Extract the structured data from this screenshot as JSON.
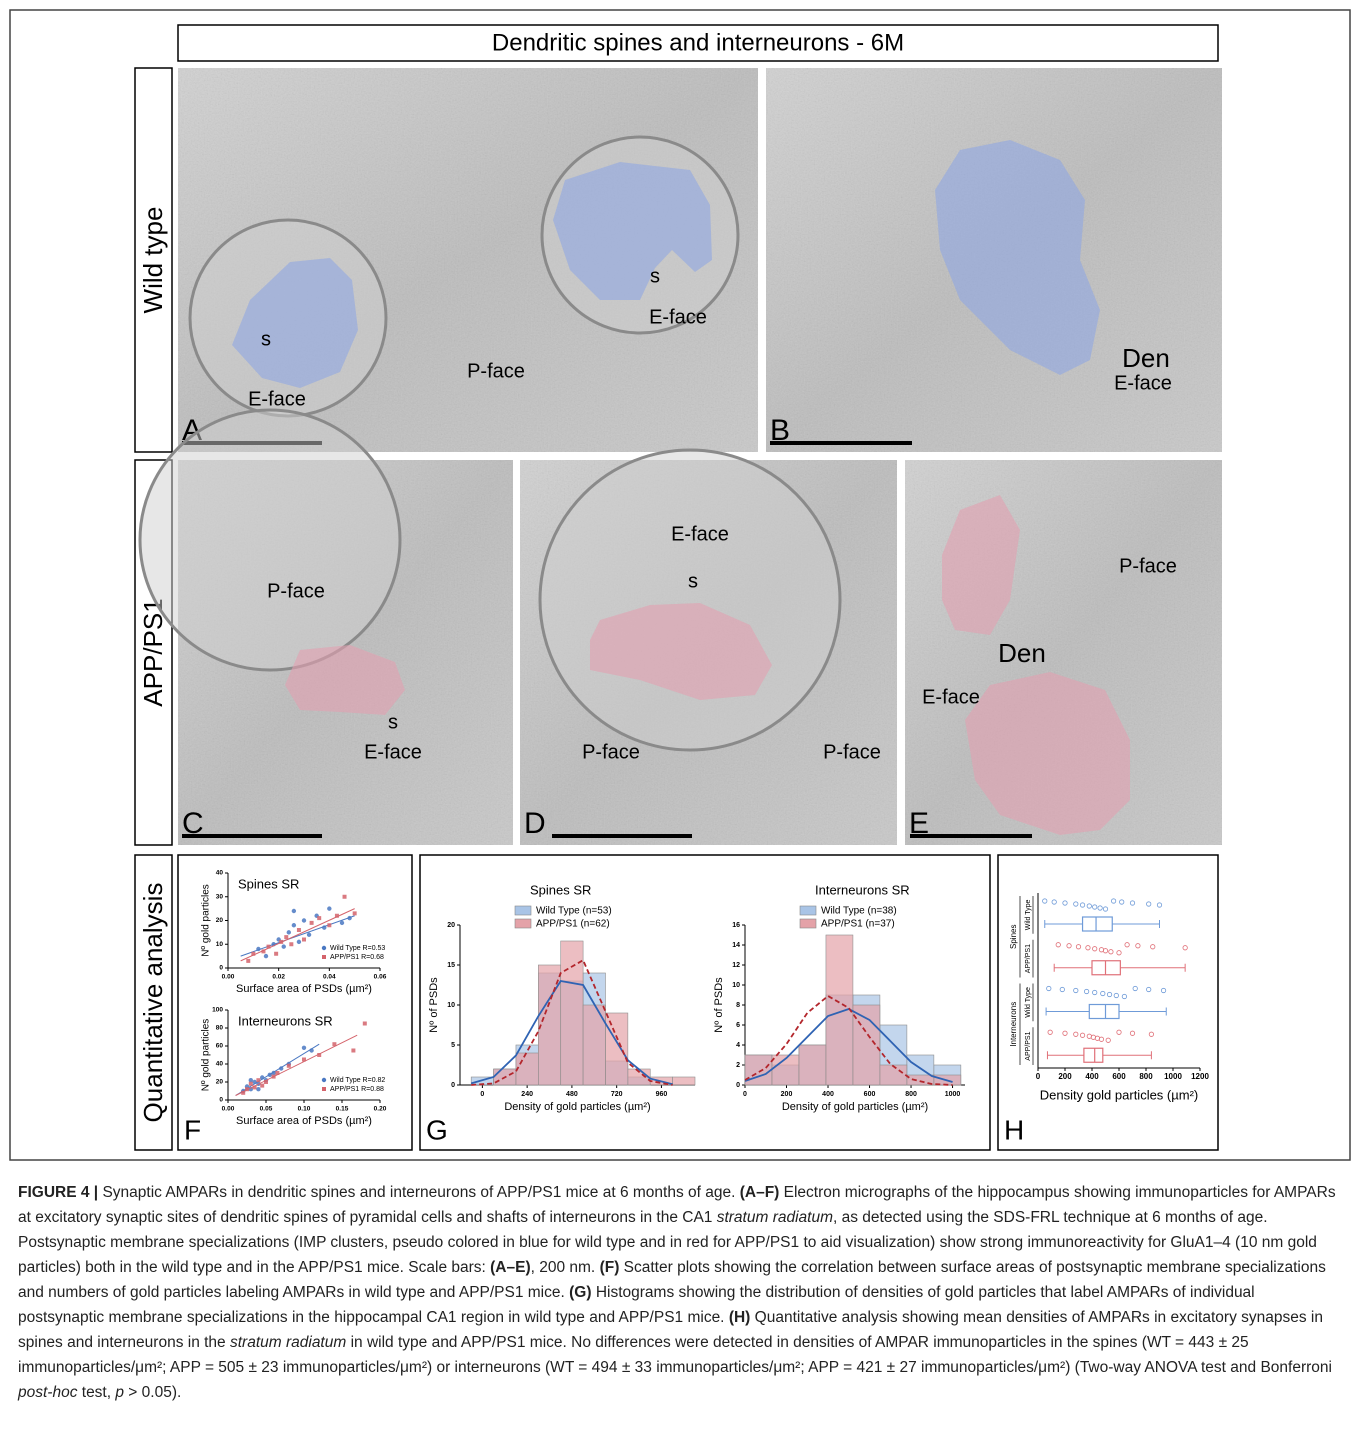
{
  "figure": {
    "title": "Dendritic spines and interneurons - 6M",
    "rows": [
      "Wild type",
      "APP/PS1",
      "Quantitative analysis"
    ],
    "panels": [
      {
        "letter": "A",
        "labels": [
          "s",
          "E-face",
          "s",
          "E-face",
          "P-face"
        ]
      },
      {
        "letter": "B",
        "labels": [
          "Den",
          "E-face"
        ]
      },
      {
        "letter": "C",
        "labels": [
          "P-face",
          "s",
          "E-face"
        ]
      },
      {
        "letter": "D",
        "labels": [
          "E-face",
          "s",
          "P-face",
          "P-face"
        ]
      },
      {
        "letter": "E",
        "labels": [
          "P-face",
          "Den",
          "E-face"
        ]
      },
      {
        "letter": "F"
      },
      {
        "letter": "G"
      },
      {
        "letter": "H"
      }
    ]
  },
  "chart_data": [
    {
      "type": "scatter",
      "title": "Spines SR",
      "x_label": "Surface area of PSDs (µm²)",
      "y_label": "Nº gold particles",
      "xlim": [
        0,
        0.06
      ],
      "xticks": [
        {
          "value": 0,
          "label": "0.00"
        },
        {
          "value": 0.02,
          "label": "0.02"
        },
        {
          "value": 0.04,
          "label": "0.04"
        },
        {
          "value": 0.06,
          "label": "0.06"
        }
      ],
      "ylim": [
        0,
        40
      ],
      "yticks": [
        0,
        10,
        20,
        30,
        40
      ],
      "series": [
        {
          "name": "Wild Type R=0.53",
          "color": "#4a78c2",
          "marker": "circle",
          "x": [
            0.012,
            0.015,
            0.018,
            0.02,
            0.022,
            0.024,
            0.026,
            0.028,
            0.03,
            0.032,
            0.035,
            0.038,
            0.04,
            0.045,
            0.048,
            0.026
          ],
          "y": [
            8,
            5,
            10,
            12,
            9,
            15,
            18,
            11,
            20,
            14,
            22,
            17,
            25,
            19,
            21,
            24
          ],
          "trend_x": [
            0.005,
            0.05
          ],
          "trend_y": [
            5,
            22
          ]
        },
        {
          "name": "APP/PS1 R=0.68",
          "color": "#d4636b",
          "marker": "square",
          "x": [
            0.008,
            0.01,
            0.014,
            0.016,
            0.019,
            0.021,
            0.023,
            0.025,
            0.028,
            0.03,
            0.033,
            0.036,
            0.04,
            0.046,
            0.05,
            0.043
          ],
          "y": [
            3,
            6,
            7,
            9,
            6,
            11,
            13,
            10,
            16,
            12,
            19,
            21,
            18,
            30,
            23,
            22
          ],
          "trend_x": [
            0.005,
            0.05
          ],
          "trend_y": [
            3,
            25
          ]
        }
      ]
    },
    {
      "type": "scatter",
      "title": "Interneurons SR",
      "x_label": "Surface area of PSDs (µm²)",
      "y_label": "Nº gold particles",
      "xlim": [
        0,
        0.2
      ],
      "xticks": [
        {
          "value": 0,
          "label": "0.00"
        },
        {
          "value": 0.05,
          "label": "0.05"
        },
        {
          "value": 0.1,
          "label": "0.10"
        },
        {
          "value": 0.15,
          "label": "0.15"
        },
        {
          "value": 0.2,
          "label": "0.20"
        }
      ],
      "ylim": [
        0,
        100
      ],
      "yticks": [
        0,
        20,
        40,
        60,
        80,
        100
      ],
      "series": [
        {
          "name": "Wild Type R=0.82",
          "color": "#4a78c2",
          "marker": "circle",
          "x": [
            0.02,
            0.025,
            0.03,
            0.035,
            0.04,
            0.045,
            0.05,
            0.055,
            0.06,
            0.07,
            0.08,
            0.1,
            0.11,
            0.03,
            0.04
          ],
          "y": [
            10,
            15,
            12,
            20,
            18,
            25,
            22,
            28,
            30,
            35,
            40,
            58,
            55,
            22,
            12
          ],
          "trend_x": [
            0.01,
            0.12
          ],
          "trend_y": [
            5,
            62
          ]
        },
        {
          "name": "APP/PS1 R=0.88",
          "color": "#d4636b",
          "marker": "square",
          "x": [
            0.02,
            0.025,
            0.03,
            0.035,
            0.04,
            0.05,
            0.06,
            0.065,
            0.08,
            0.1,
            0.12,
            0.14,
            0.165,
            0.18,
            0.045
          ],
          "y": [
            8,
            12,
            18,
            14,
            22,
            20,
            26,
            30,
            38,
            45,
            50,
            62,
            55,
            85,
            16
          ],
          "trend_x": [
            0.01,
            0.17
          ],
          "trend_y": [
            5,
            72
          ]
        }
      ]
    },
    {
      "type": "histogram",
      "title": "Spines SR",
      "x_label": "Density of gold particles (µm²)",
      "y_label": "Nº of PSDs",
      "xlim": [
        -120,
        1140
      ],
      "xticks": [
        0,
        240,
        480,
        720,
        960
      ],
      "ylim": [
        0,
        20
      ],
      "yticks": [
        0,
        5,
        10,
        15,
        20
      ],
      "bins": [
        -60,
        60,
        180,
        300,
        420,
        540,
        660,
        780,
        900,
        1020,
        1140
      ],
      "series": [
        {
          "name": "Wild Type (n=53)",
          "color": "#a9c4e6",
          "line_color": "#2f63b3",
          "dash": false,
          "values": [
            1,
            2,
            5,
            14,
            13,
            14,
            3,
            1,
            0,
            0
          ],
          "fit_x": [
            -60,
            60,
            180,
            300,
            420,
            540,
            660,
            780,
            900,
            1020
          ],
          "fit_y": [
            0.2,
            1,
            3.7,
            8.6,
            13,
            12.5,
            7.7,
            3.1,
            0.8,
            0.1
          ]
        },
        {
          "name": "APP/PS1 (n=62)",
          "color": "#e4a2a8",
          "line_color": "#b3262c",
          "dash": true,
          "values": [
            0,
            2,
            4,
            15,
            18,
            10,
            9,
            2,
            1,
            1
          ],
          "fit_x": [
            -60,
            60,
            180,
            300,
            420,
            540,
            660,
            780,
            900,
            1020
          ],
          "fit_y": [
            0,
            0.2,
            1.7,
            6.7,
            14,
            15.6,
            9.2,
            2.8,
            0.5,
            0
          ]
        }
      ]
    },
    {
      "type": "histogram",
      "title": "Interneurons SR",
      "x_label": "Density of gold particles (µm²)",
      "y_label": "Nº of PSDs",
      "xlim": [
        0,
        1060
      ],
      "xticks": [
        0,
        200,
        400,
        600,
        800,
        1000
      ],
      "ylim": [
        0,
        16
      ],
      "yticks": [
        0,
        2,
        4,
        6,
        8,
        10,
        12,
        14,
        16
      ],
      "bins": [
        0,
        130,
        260,
        390,
        520,
        650,
        780,
        910,
        1040
      ],
      "series": [
        {
          "name": "Wild Type (n=38)",
          "color": "#a9c4e6",
          "line_color": "#2f63b3",
          "dash": false,
          "values": [
            3,
            2,
            4,
            9,
            9,
            6,
            3,
            2
          ],
          "fit_x": [
            0,
            100,
            200,
            300,
            400,
            500,
            600,
            700,
            800,
            900,
            1000
          ],
          "fit_y": [
            0.4,
            1.1,
            2.7,
            4.8,
            6.9,
            7.6,
            6.5,
            4.4,
            2.3,
            0.9,
            0.3
          ]
        },
        {
          "name": "APP/PS1 (n=37)",
          "color": "#e4a2a8",
          "line_color": "#b3262c",
          "dash": true,
          "values": [
            3,
            3,
            4,
            15,
            8,
            2,
            1,
            1
          ],
          "fit_x": [
            0,
            100,
            200,
            300,
            400,
            500,
            600,
            700,
            800,
            900,
            1000
          ],
          "fit_y": [
            0.5,
            1.7,
            4.1,
            7.2,
            8.9,
            7.7,
            4.8,
            2.1,
            0.6,
            0.1,
            0
          ]
        }
      ]
    },
    {
      "type": "box",
      "x_label": "Density gold particles (µm²)",
      "xlim": [
        0,
        1200
      ],
      "xticks": [
        0,
        200,
        400,
        600,
        800,
        1000,
        1200
      ],
      "groups": [
        "Spines",
        "Interneurons"
      ],
      "categories": [
        "Wild Type",
        "APP/PS1",
        "Wild Type",
        "APP/PS1"
      ],
      "rows": [
        {
          "color": "#6f9bd8",
          "min": 50,
          "q1": 330,
          "median": 430,
          "q3": 550,
          "max": 900,
          "points": [
            50,
            120,
            200,
            280,
            330,
            380,
            420,
            460,
            500,
            560,
            620,
            700,
            820,
            900
          ]
        },
        {
          "color": "#e07078",
          "min": 120,
          "q1": 400,
          "median": 500,
          "q3": 610,
          "max": 1090,
          "points": [
            150,
            230,
            300,
            370,
            420,
            470,
            500,
            540,
            600,
            660,
            740,
            850,
            1090
          ]
        },
        {
          "color": "#6f9bd8",
          "min": 60,
          "q1": 380,
          "median": 500,
          "q3": 600,
          "max": 950,
          "points": [
            80,
            180,
            280,
            360,
            420,
            480,
            530,
            580,
            640,
            720,
            820,
            930
          ]
        },
        {
          "color": "#e07078",
          "min": 70,
          "q1": 340,
          "median": 420,
          "q3": 480,
          "max": 840,
          "points": [
            90,
            200,
            280,
            330,
            380,
            410,
            440,
            470,
            520,
            600,
            700,
            840
          ]
        }
      ]
    }
  ],
  "caption": [
    {
      "text": "FIGURE 4 | ",
      "style": "bold"
    },
    {
      "text": "Synaptic AMPARs in dendritic spines and interneurons of APP/PS1 mice at 6 months of age. "
    },
    {
      "text": "(A–F)",
      "style": "bold"
    },
    {
      "text": " Electron micrographs of the hippocampus showing immunoparticles for AMPARs at excitatory synaptic sites of dendritic spines of pyramidal cells and shafts of interneurons in the CA1 "
    },
    {
      "text": "stratum radiatum",
      "style": "italic"
    },
    {
      "text": ", as detected using the SDS-FRL technique at 6 months of age. Postsynaptic membrane specializations (IMP clusters, pseudo colored in blue for wild type and in red for APP/PS1 to aid visualization) show strong immunoreactivity for GluA1–4 (10 nm gold particles) both in the wild type and in the APP/PS1 mice. Scale bars: "
    },
    {
      "text": "(A–E)",
      "style": "bold"
    },
    {
      "text": ", 200 nm. "
    },
    {
      "text": "(F)",
      "style": "bold"
    },
    {
      "text": " Scatter plots showing the correlation between surface areas of postsynaptic membrane specializations and numbers of gold particles labeling AMPARs in wild type and APP/PS1 mice. "
    },
    {
      "text": "(G)",
      "style": "bold"
    },
    {
      "text": " Histograms showing the distribution of densities of gold particles that label AMPARs of individual postsynaptic membrane specializations in the hippocampal CA1 region in wild type and APP/PS1 mice. "
    },
    {
      "text": "(H)",
      "style": "bold"
    },
    {
      "text": " Quantitative analysis showing mean densities of AMPARs in excitatory synapses in spines and interneurons in the "
    },
    {
      "text": "stratum radiatum",
      "style": "italic"
    },
    {
      "text": " in wild type and APP/PS1 mice. No differences were detected in densities of AMPAR immunoparticles in the spines (WT = 443 ± 25 immunoparticles/μm²; APP = 505 ± 23 immunoparticles/μm²) or interneurons (WT = 494 ± 33 immunoparticles/μm²; APP = 421 ± 27 immunoparticles/μm²) (Two-way ANOVA test and Bonferroni "
    },
    {
      "text": "post-hoc",
      "style": "italic"
    },
    {
      "text": " test, "
    },
    {
      "text": "p",
      "style": "italic"
    },
    {
      "text": " > 0.05)."
    }
  ]
}
